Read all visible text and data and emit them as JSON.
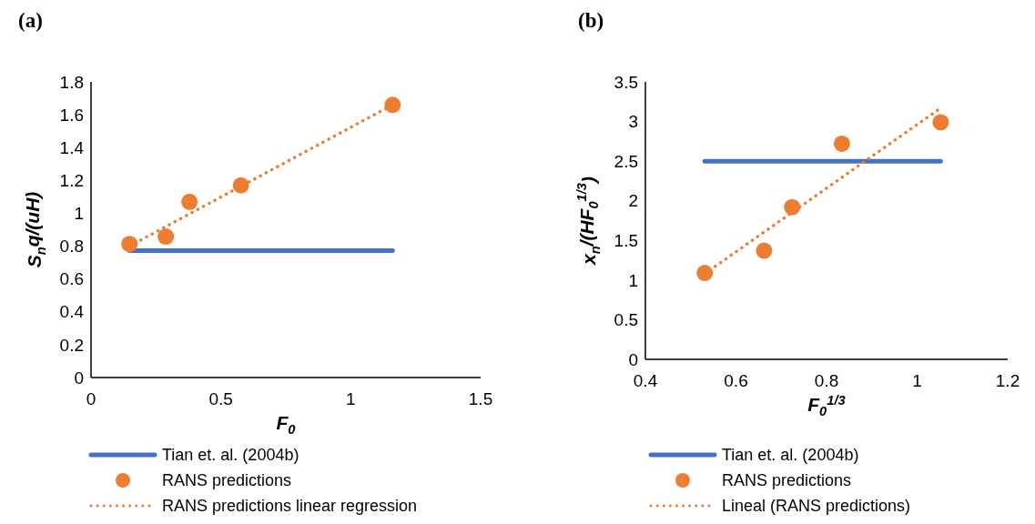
{
  "chart_data": [
    {
      "type": "scatter",
      "title": "(a)",
      "xlabel": "F$_{0}$",
      "ylabel": "S$_{n}$q/(uH)",
      "xlim": [
        0,
        1.5
      ],
      "xticks": [
        {
          "value": 0,
          "label": "0"
        },
        {
          "value": 0.5,
          "label": "0.5"
        },
        1,
        {
          "value": 1.5,
          "label": "1.5"
        }
      ],
      "ylim": [
        0,
        1.8
      ],
      "yticks": [
        {
          "value": 0,
          "label": "0"
        },
        {
          "value": 0.2,
          "label": "0.2"
        },
        {
          "value": 0.4,
          "label": "0.4"
        },
        {
          "value": 0.6,
          "label": "0.6"
        },
        {
          "value": 0.8,
          "label": "0.8"
        },
        1,
        {
          "value": 1.2,
          "label": "1.2"
        },
        {
          "value": 1.4,
          "label": "1.4"
        },
        {
          "value": 1.6,
          "label": "1.6"
        },
        {
          "value": 1.8,
          "label": "1.8"
        }
      ],
      "grid": false,
      "legend": "bottom",
      "series": [
        {
          "type": "line",
          "name": "Tian et. al. (2004b)",
          "color": "#4472c4",
          "line_style": "solid",
          "marker": "none",
          "x": [
            0.148,
            1.161
          ],
          "values": [
            0.773,
            0.773
          ]
        },
        {
          "name": "RANS predictions",
          "color": "#ed7d31",
          "marker": "circle",
          "x": [
            0.148,
            0.288,
            0.379,
            0.577,
            1.161
          ],
          "values": [
            0.813,
            0.858,
            1.07,
            1.17,
            1.66
          ]
        },
        {
          "type": "line",
          "name": "RANS predictions linear regression",
          "color": "#ed7d31",
          "line_style": "dotted",
          "marker": "none",
          "x": [
            0.148,
            1.161
          ],
          "values": [
            0.8,
            1.66
          ]
        }
      ]
    },
    {
      "type": "scatter",
      "title": "(b)",
      "xlabel": "F$_{0}$$^{1/3}$",
      "ylabel": "x$_{n}$/(HF$_{0}$$^{1/3}$)",
      "xlim": [
        0.4,
        1.2
      ],
      "xticks": [
        {
          "value": 0.4,
          "label": "0.4"
        },
        {
          "value": 0.6,
          "label": "0.6"
        },
        {
          "value": 0.8,
          "label": "0.8"
        },
        1,
        {
          "value": 1.2,
          "label": "1.2"
        }
      ],
      "ylim": [
        0,
        3.5
      ],
      "yticks": [
        {
          "value": 0,
          "label": "0"
        },
        {
          "value": 0.5,
          "label": "0.5"
        },
        1,
        {
          "value": 1.5,
          "label": "1.5"
        },
        2,
        {
          "value": 2.5,
          "label": "2.5"
        },
        3,
        {
          "value": 3.5,
          "label": "3.5"
        }
      ],
      "grid": false,
      "legend": "bottom",
      "series": [
        {
          "type": "line",
          "name": "Tian et. al. (2004b)",
          "color": "#4472c4",
          "line_style": "solid",
          "marker": "none",
          "x": [
            0.531,
            1.052
          ],
          "values": [
            2.5,
            2.5
          ]
        },
        {
          "name": "RANS predictions",
          "color": "#ed7d31",
          "marker": "circle",
          "x": [
            0.531,
            0.662,
            0.724,
            0.834,
            1.052
          ],
          "values": [
            1.09,
            1.37,
            1.92,
            2.72,
            2.99
          ]
        },
        {
          "type": "line",
          "name": "Lineal (RANS predictions)",
          "color": "#ed7d31",
          "line_style": "dotted",
          "marker": "none",
          "x": [
            0.531,
            1.052
          ],
          "values": [
            1.08,
            3.17
          ]
        }
      ]
    }
  ]
}
